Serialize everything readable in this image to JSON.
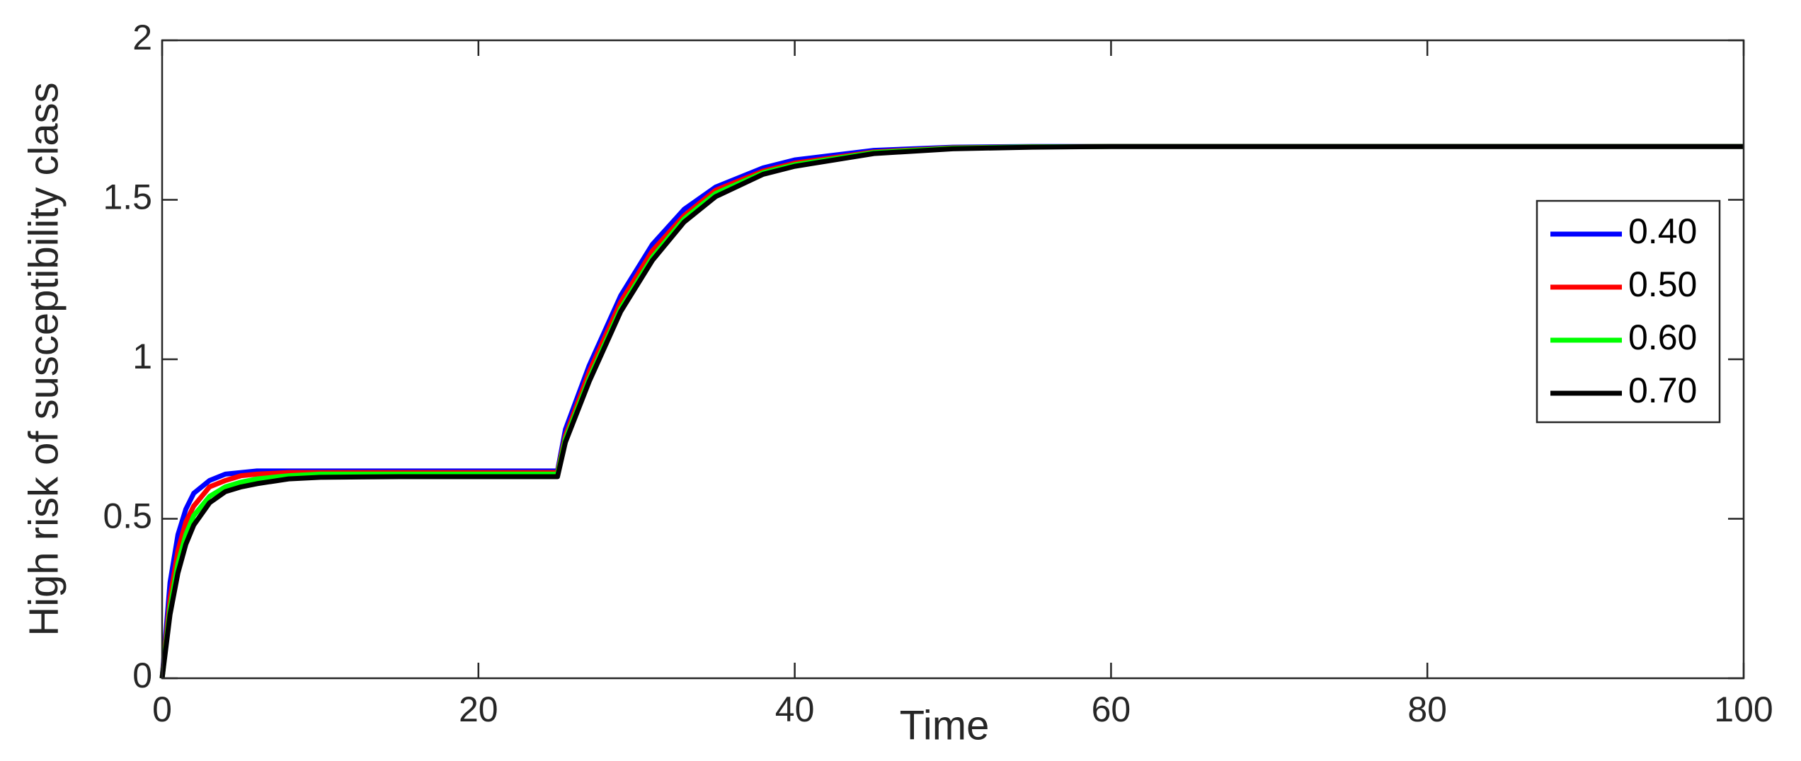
{
  "chart_data": {
    "type": "line",
    "xlabel": "Time",
    "ylabel": "High risk of susceptibility class",
    "x": [
      0,
      0.5,
      1,
      1.5,
      2,
      3,
      4,
      5,
      6,
      8,
      10,
      15,
      20,
      25,
      25.5,
      27,
      29,
      31,
      33,
      35,
      38,
      40,
      45,
      50,
      55,
      60,
      70,
      80,
      90,
      100
    ],
    "series": [
      {
        "name": "0.40",
        "color": "#0000ff",
        "values": [
          0,
          0.3,
          0.45,
          0.53,
          0.58,
          0.62,
          0.64,
          0.645,
          0.65,
          0.65,
          0.65,
          0.65,
          0.65,
          0.65,
          0.78,
          0.98,
          1.2,
          1.36,
          1.47,
          1.54,
          1.6,
          1.625,
          1.655,
          1.665,
          1.667,
          1.667,
          1.667,
          1.667,
          1.667,
          1.667
        ]
      },
      {
        "name": "0.50",
        "color": "#ff0000",
        "values": [
          0,
          0.25,
          0.4,
          0.49,
          0.54,
          0.6,
          0.62,
          0.635,
          0.64,
          0.645,
          0.645,
          0.645,
          0.645,
          0.645,
          0.76,
          0.96,
          1.18,
          1.34,
          1.45,
          1.53,
          1.59,
          1.615,
          1.65,
          1.663,
          1.666,
          1.667,
          1.667,
          1.667,
          1.667,
          1.667
        ]
      },
      {
        "name": "0.60",
        "color": "#00ff00",
        "values": [
          0,
          0.22,
          0.36,
          0.45,
          0.51,
          0.57,
          0.6,
          0.615,
          0.625,
          0.635,
          0.64,
          0.64,
          0.64,
          0.64,
          0.75,
          0.94,
          1.16,
          1.32,
          1.44,
          1.52,
          1.585,
          1.61,
          1.648,
          1.662,
          1.666,
          1.667,
          1.667,
          1.667,
          1.667,
          1.667
        ]
      },
      {
        "name": "0.70",
        "color": "#000000",
        "values": [
          0,
          0.2,
          0.33,
          0.42,
          0.48,
          0.55,
          0.585,
          0.6,
          0.61,
          0.625,
          0.63,
          0.632,
          0.632,
          0.632,
          0.74,
          0.93,
          1.15,
          1.31,
          1.43,
          1.51,
          1.58,
          1.605,
          1.645,
          1.66,
          1.665,
          1.667,
          1.667,
          1.667,
          1.667,
          1.667
        ]
      }
    ],
    "xlim": [
      0,
      100
    ],
    "ylim": [
      0,
      2
    ],
    "xticks": [
      0,
      20,
      40,
      60,
      80,
      100
    ],
    "yticks": [
      0,
      0.5,
      1,
      1.5,
      2
    ],
    "legend": "right"
  }
}
